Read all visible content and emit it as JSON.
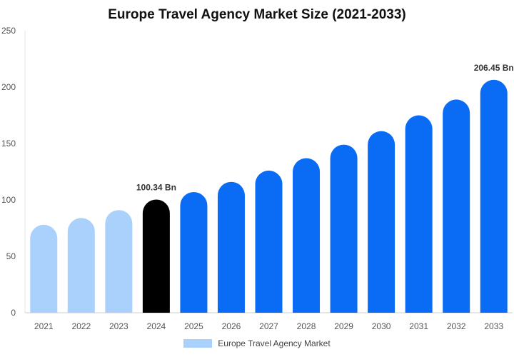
{
  "chart_data": {
    "type": "bar",
    "title": "Europe Travel Agency Market Size (2021-2033)",
    "categories": [
      "2021",
      "2022",
      "2023",
      "2024",
      "2025",
      "2026",
      "2027",
      "2028",
      "2029",
      "2030",
      "2031",
      "2032",
      "2033"
    ],
    "values": [
      78,
      84,
      91,
      100.34,
      107,
      116,
      126,
      137,
      149,
      161,
      175,
      189,
      206.45
    ],
    "ylim": [
      0,
      250
    ],
    "yticks": [
      0,
      50,
      100,
      150,
      200,
      250
    ],
    "grid": false,
    "legend": {
      "position": "bottom",
      "entries": [
        "Europe Travel Agency Market"
      ]
    },
    "annotations": [
      {
        "category": "2024",
        "text": "100.34 Bn"
      },
      {
        "category": "2033",
        "text": "206.45 Bn"
      }
    ],
    "colors": {
      "historical": "#a9d1fb",
      "base_year": "#000000",
      "forecast": "#0a6cf5"
    },
    "color_groups": [
      "historical",
      "historical",
      "historical",
      "base_year",
      "forecast",
      "forecast",
      "forecast",
      "forecast",
      "forecast",
      "forecast",
      "forecast",
      "forecast",
      "forecast"
    ]
  }
}
